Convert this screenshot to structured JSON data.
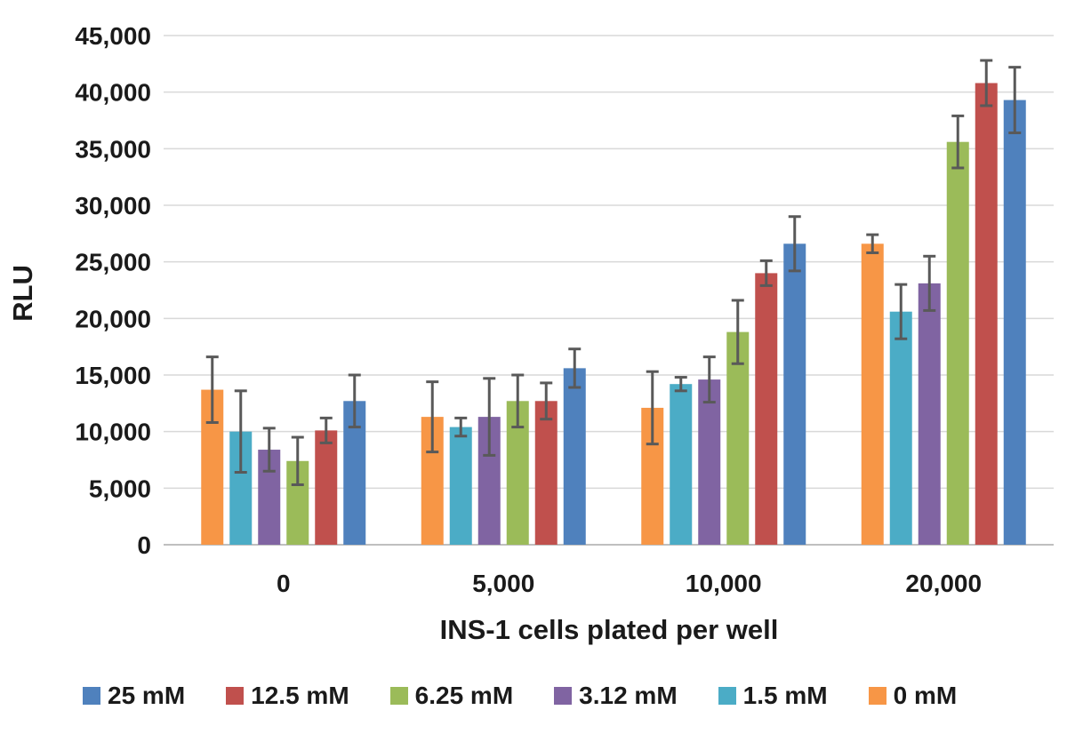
{
  "chart_data": {
    "type": "bar",
    "title": "",
    "xlabel": "INS-1 cells plated per well",
    "ylabel": "RLU",
    "categories": [
      "0",
      "5,000",
      "10,000",
      "20,000"
    ],
    "ylim": [
      0,
      45000
    ],
    "ytick_values": [
      0,
      5000,
      10000,
      15000,
      20000,
      25000,
      30000,
      35000,
      40000,
      45000
    ],
    "ytick_labels": [
      "0",
      "5,000",
      "10,000",
      "15,000",
      "20,000",
      "25,000",
      "30,000",
      "35,000",
      "40,000",
      "45,000"
    ],
    "grid": true,
    "legend_position": "bottom",
    "bar_order_in_group": "reverse_of_legend",
    "colors": {
      "gridline": "#D9D9D9",
      "baseline": "#BFBFBF",
      "error_bar": "#595959",
      "text": "#1a1a1a"
    },
    "series": [
      {
        "name": "25 mM",
        "color": "#4F81BD",
        "values": [
          12700,
          15600,
          26600,
          39300
        ],
        "errors": [
          2300,
          1700,
          2400,
          2900
        ]
      },
      {
        "name": "12.5 mM",
        "color": "#C0504D",
        "values": [
          10100,
          12700,
          24000,
          40800
        ],
        "errors": [
          1100,
          1600,
          1100,
          2000
        ]
      },
      {
        "name": "6.25 mM",
        "color": "#9BBB59",
        "values": [
          7400,
          12700,
          18800,
          35600
        ],
        "errors": [
          2100,
          2300,
          2800,
          2300
        ]
      },
      {
        "name": "3.12 mM",
        "color": "#8064A2",
        "values": [
          8400,
          11300,
          14600,
          23100
        ],
        "errors": [
          1900,
          3400,
          2000,
          2400
        ]
      },
      {
        "name": "1.5 mM",
        "color": "#4BACC6",
        "values": [
          10000,
          10400,
          14200,
          20600
        ],
        "errors": [
          3600,
          800,
          600,
          2400
        ]
      },
      {
        "name": "0 mM",
        "color": "#F79646",
        "values": [
          13700,
          11300,
          12100,
          26600
        ],
        "errors": [
          2900,
          3100,
          3200,
          800
        ]
      }
    ]
  }
}
